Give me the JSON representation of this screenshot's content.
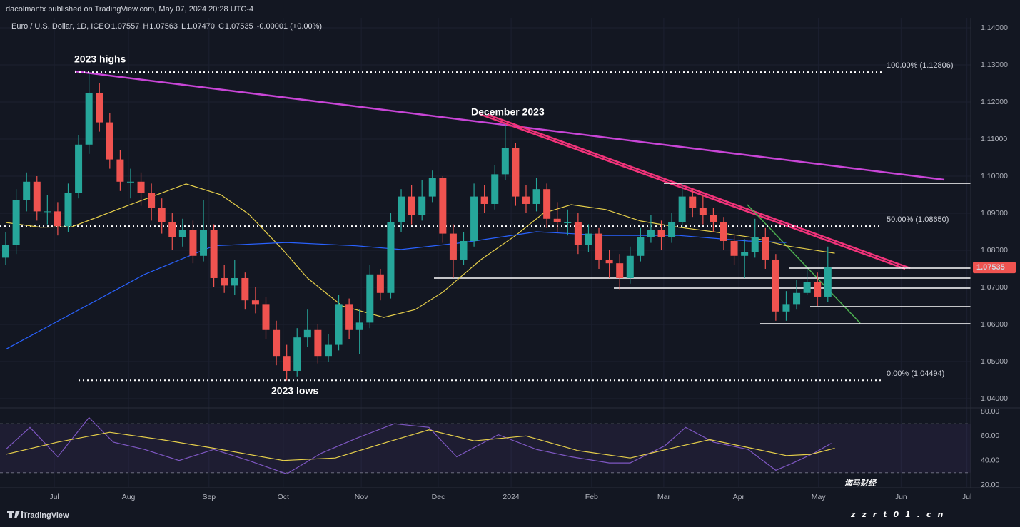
{
  "header": {
    "publisher": "dacolmanfx published on TradingView.com, May 07, 2024 20:28 UTC-4",
    "symbol": "Euro / U.S. Dollar, 1D, ICE",
    "ohlc": [
      {
        "key": "O",
        "value": "1.07557"
      },
      {
        "key": "H",
        "value": "1.07563"
      },
      {
        "key": "L",
        "value": "1.07470"
      },
      {
        "key": "C",
        "value": "1.07535"
      }
    ],
    "change": "-0.00001 (+0.00%)"
  },
  "chart_data": [
    {
      "type": "candlestick",
      "annotations": [
        "2023 highs",
        "December 2023",
        "2023 lows"
      ],
      "x": [
        0,
        3,
        6,
        9,
        12,
        15,
        18,
        21,
        24,
        27,
        30,
        33,
        36,
        39,
        42,
        45,
        48,
        51,
        54,
        57,
        60,
        63,
        66,
        69,
        72,
        75,
        78,
        81,
        84,
        87,
        90,
        93,
        96,
        99,
        102,
        105,
        108,
        111,
        114,
        117,
        120,
        123,
        126,
        129,
        132,
        135,
        138,
        141,
        144,
        147,
        150,
        153,
        156,
        159,
        162,
        165,
        168,
        171,
        174,
        177,
        180,
        183,
        186,
        189,
        192,
        195,
        198,
        201,
        204,
        207,
        210,
        213,
        216,
        219,
        222,
        225,
        228,
        231,
        234,
        237
      ],
      "open": [
        1.078,
        1.0815,
        1.0935,
        1.0985,
        1.0905,
        1.0905,
        1.0865,
        1.0955,
        1.1085,
        1.1225,
        1.1145,
        1.1045,
        1.0985,
        1.0985,
        1.0955,
        1.0915,
        1.0875,
        1.0835,
        1.0855,
        1.0785,
        1.0855,
        1.0725,
        1.0705,
        1.0725,
        1.0665,
        1.0655,
        1.0585,
        1.0515,
        1.0475,
        1.0565,
        1.0585,
        1.0515,
        1.0545,
        1.0655,
        1.0585,
        1.0605,
        1.0735,
        1.0685,
        1.0875,
        1.0945,
        1.0895,
        1.0945,
        1.0995,
        1.0845,
        1.0775,
        1.0825,
        1.0945,
        1.0925,
        1.1005,
        1.1075,
        1.0945,
        1.0925,
        1.0965,
        1.0885,
        1.0875,
        1.0875,
        1.0815,
        1.0845,
        1.0775,
        1.0765,
        1.0725,
        1.0785,
        1.0835,
        1.0855,
        1.0835,
        1.0875,
        1.0945,
        1.0915,
        1.0895,
        1.0875,
        1.0825,
        1.0785,
        1.0795,
        1.0835,
        1.0775,
        1.0635,
        1.0655,
        1.0685,
        1.0715,
        1.0675
      ],
      "high": [
        1.085,
        1.0965,
        1.101,
        1.1,
        1.095,
        1.093,
        1.098,
        1.111,
        1.1276,
        1.125,
        1.117,
        1.107,
        1.102,
        1.101,
        1.098,
        1.094,
        1.09,
        1.0885,
        1.088,
        1.0935,
        1.087,
        1.076,
        1.0775,
        1.074,
        1.07,
        1.0675,
        1.061,
        1.0545,
        1.059,
        1.064,
        1.06,
        1.0575,
        1.068,
        1.067,
        1.064,
        1.076,
        1.075,
        1.09,
        1.0965,
        1.0975,
        1.099,
        1.1015,
        1.1,
        1.087,
        1.085,
        1.098,
        1.0975,
        1.103,
        1.114,
        1.109,
        1.0975,
        1.0995,
        1.098,
        1.093,
        1.091,
        1.09,
        1.087,
        1.086,
        1.08,
        1.079,
        1.081,
        1.086,
        1.0895,
        1.088,
        1.09,
        1.098,
        1.0965,
        1.095,
        1.0915,
        1.089,
        1.084,
        1.083,
        1.0885,
        1.086,
        1.079,
        1.069,
        1.072,
        1.075,
        1.074,
        1.081
      ],
      "low": [
        1.076,
        1.079,
        1.0905,
        1.088,
        1.087,
        1.084,
        1.085,
        1.094,
        1.106,
        1.112,
        1.102,
        1.096,
        1.094,
        1.092,
        1.088,
        1.0845,
        1.08,
        1.081,
        1.0765,
        1.077,
        1.07,
        1.0685,
        1.068,
        1.064,
        1.063,
        1.056,
        1.049,
        1.0449,
        1.046,
        1.054,
        1.0495,
        1.05,
        1.053,
        1.056,
        1.052,
        1.059,
        1.0665,
        1.067,
        1.085,
        1.087,
        1.088,
        1.093,
        1.082,
        1.0725,
        1.076,
        1.081,
        1.09,
        1.091,
        1.099,
        1.092,
        1.09,
        1.0905,
        1.086,
        1.085,
        1.084,
        1.079,
        1.0795,
        1.075,
        1.0725,
        1.0695,
        1.071,
        1.077,
        1.082,
        1.08,
        1.082,
        1.086,
        1.089,
        1.087,
        1.085,
        1.08,
        1.076,
        1.0725,
        1.078,
        1.075,
        1.061,
        1.061,
        1.064,
        1.068,
        1.065,
        1.066
      ],
      "close": [
        1.0815,
        1.0935,
        1.0985,
        1.0905,
        1.0905,
        1.0865,
        1.0955,
        1.1085,
        1.1225,
        1.1145,
        1.1045,
        1.0985,
        1.0985,
        1.0955,
        1.0915,
        1.0875,
        1.0835,
        1.0855,
        1.0785,
        1.0855,
        1.0725,
        1.0705,
        1.0725,
        1.0665,
        1.0655,
        1.0585,
        1.0515,
        1.0475,
        1.0565,
        1.0585,
        1.0515,
        1.0545,
        1.0655,
        1.0585,
        1.0605,
        1.0735,
        1.0685,
        1.0875,
        1.0945,
        1.0895,
        1.0945,
        1.0995,
        1.0845,
        1.0775,
        1.0825,
        1.0945,
        1.0925,
        1.1005,
        1.1075,
        1.0945,
        1.0925,
        1.0965,
        1.0885,
        1.0875,
        1.0875,
        1.0815,
        1.0845,
        1.0775,
        1.0765,
        1.0725,
        1.0785,
        1.0835,
        1.0855,
        1.0835,
        1.0875,
        1.0945,
        1.0915,
        1.0895,
        1.0875,
        1.0825,
        1.0785,
        1.0795,
        1.0835,
        1.0775,
        1.0635,
        1.0655,
        1.0685,
        1.0715,
        1.0675,
        1.07535
      ],
      "up_color": "#26a69a",
      "down_color": "#ef5350",
      "moving_averages": [
        {
          "color": "#e6cf4a",
          "x": [
            0,
            10,
            19,
            35,
            52,
            62,
            70,
            80,
            87,
            97,
            109,
            118,
            126,
            137,
            147,
            155,
            163,
            173,
            183,
            194,
            204,
            215,
            225,
            239
          ],
          "values": [
            1.0875,
            1.0862,
            1.0863,
            1.092,
            1.0979,
            1.095,
            1.0898,
            1.08,
            1.0725,
            1.065,
            1.0619,
            1.064,
            1.0687,
            1.0775,
            1.084,
            1.09,
            1.0923,
            1.091,
            1.0879,
            1.0862,
            1.085,
            1.0835,
            1.0812,
            1.0792
          ]
        },
        {
          "color": "#2962ff",
          "x": [
            0,
            19,
            40,
            60,
            81,
            101,
            114,
            132,
            153,
            173,
            194,
            214,
            225
          ],
          "values": [
            1.0533,
            1.0629,
            1.0735,
            1.0812,
            1.0821,
            1.0812,
            1.0802,
            1.0821,
            1.085,
            1.084,
            1.084,
            1.0825,
            1.0821
          ]
        }
      ],
      "fib_levels": [
        {
          "label": "100.00% (1.12806)",
          "value": 1.12806
        },
        {
          "label": "50.00% (1.08650)",
          "value": 1.0865
        },
        {
          "label": "0.00% (1.04494)",
          "value": 1.04494
        }
      ],
      "last_price": {
        "value": 1.07535,
        "label": "1.07535"
      },
      "xlim": [
        -1.65,
        278.2
      ],
      "xticks": [
        {
          "value": 14,
          "label": "Jul"
        },
        {
          "value": 35.4,
          "label": "Aug"
        },
        {
          "value": 58.6,
          "label": "Sep"
        },
        {
          "value": 80,
          "label": "Oct"
        },
        {
          "value": 102.5,
          "label": "Nov"
        },
        {
          "value": 124.7,
          "label": "Dec"
        },
        {
          "value": 145.7,
          "label": "2024"
        },
        {
          "value": 168.9,
          "label": "Feb"
        },
        {
          "value": 189.7,
          "label": "Mar"
        },
        {
          "value": 211.3,
          "label": "Apr"
        },
        {
          "value": 234.3,
          "label": "May"
        },
        {
          "value": 258.1,
          "label": "Jun"
        },
        {
          "value": 277.1,
          "label": "Jul"
        }
      ],
      "ylim": [
        1.03788,
        1.14269
      ],
      "yticks": [
        {
          "value": 1.04,
          "label": "1.04000"
        },
        {
          "value": 1.05,
          "label": "1.05000"
        },
        {
          "value": 1.06,
          "label": "1.06000"
        },
        {
          "value": 1.07,
          "label": "1.07000"
        },
        {
          "value": 1.08,
          "label": "1.08000"
        },
        {
          "value": 1.09,
          "label": "1.09000"
        },
        {
          "value": 1.1,
          "label": "1.10000"
        },
        {
          "value": 1.11,
          "label": "1.11000"
        },
        {
          "value": 1.12,
          "label": "1.12000"
        },
        {
          "value": 1.13,
          "label": "1.13000"
        },
        {
          "value": 1.14,
          "label": "1.14000"
        }
      ],
      "grid": true
    },
    {
      "type": "line",
      "series": [
        {
          "color": "#7e57c2",
          "x": [
            0,
            7,
            15,
            24,
            31,
            40,
            50,
            60,
            70,
            81,
            91,
            101,
            112,
            122,
            130,
            142,
            153,
            163,
            174,
            180,
            190,
            196,
            204,
            214,
            222,
            227,
            233,
            238
          ],
          "values": [
            49,
            67,
            43,
            75,
            55,
            49,
            40,
            49,
            40,
            29,
            46,
            58,
            70,
            67,
            43,
            61,
            49,
            43,
            38,
            38,
            52,
            67,
            55,
            49,
            32,
            38,
            46,
            54
          ]
        },
        {
          "color": "#e6cf4a",
          "x": [
            0,
            15,
            30,
            45,
            60,
            80,
            95,
            110,
            122,
            135,
            150,
            165,
            180,
            195,
            203,
            215,
            225,
            232,
            239
          ],
          "values": [
            45,
            55,
            63,
            57,
            50,
            40,
            42,
            55,
            65,
            56,
            60,
            48,
            42,
            52,
            57,
            50,
            44,
            45,
            50
          ]
        }
      ],
      "bands": [
        70,
        30
      ],
      "ylim": [
        18.25,
        81.17
      ],
      "yticks": [
        {
          "value": 80,
          "label": "80.00"
        },
        {
          "value": 60,
          "label": "60.00"
        },
        {
          "value": 40,
          "label": "40.00"
        },
        {
          "value": 20,
          "label": "20.00"
        }
      ]
    }
  ],
  "footer": {
    "brand": "TradingView"
  },
  "watermark": {
    "title": "海马财经",
    "url": "zzrt01.cn"
  }
}
